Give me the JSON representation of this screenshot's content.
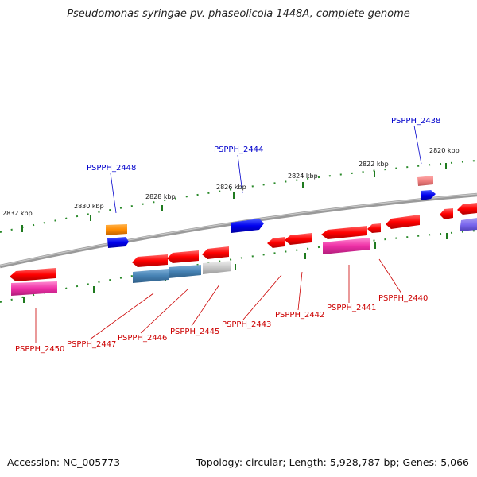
{
  "title": "Pseudomonas syringae pv. phaseolicola 1448A, complete genome",
  "footer": {
    "accession": "Accession: NC_005773",
    "topology": "Topology: circular; Length: 5,928,787 bp; Genes: 5,066"
  },
  "colors": {
    "forward_label": "#0000cc",
    "reverse_label": "#cc0000",
    "backbone": "#888888",
    "tick": "#2a8a2a"
  },
  "ticks": [
    "2832 kbp",
    "2830 kbp",
    "2828 kbp",
    "2826 kbp",
    "2824 kbp",
    "2822 kbp",
    "2820 kbp"
  ],
  "labels": {
    "forward": [
      "PSPPH_2448",
      "PSPPH_2444",
      "PSPPH_2438"
    ],
    "reverse": [
      "PSPPH_2450",
      "PSPPH_2447",
      "PSPPH_2446",
      "PSPPH_2445",
      "PSPPH_2443",
      "PSPPH_2442",
      "PSPPH_2441",
      "PSPPH_2440"
    ]
  }
}
